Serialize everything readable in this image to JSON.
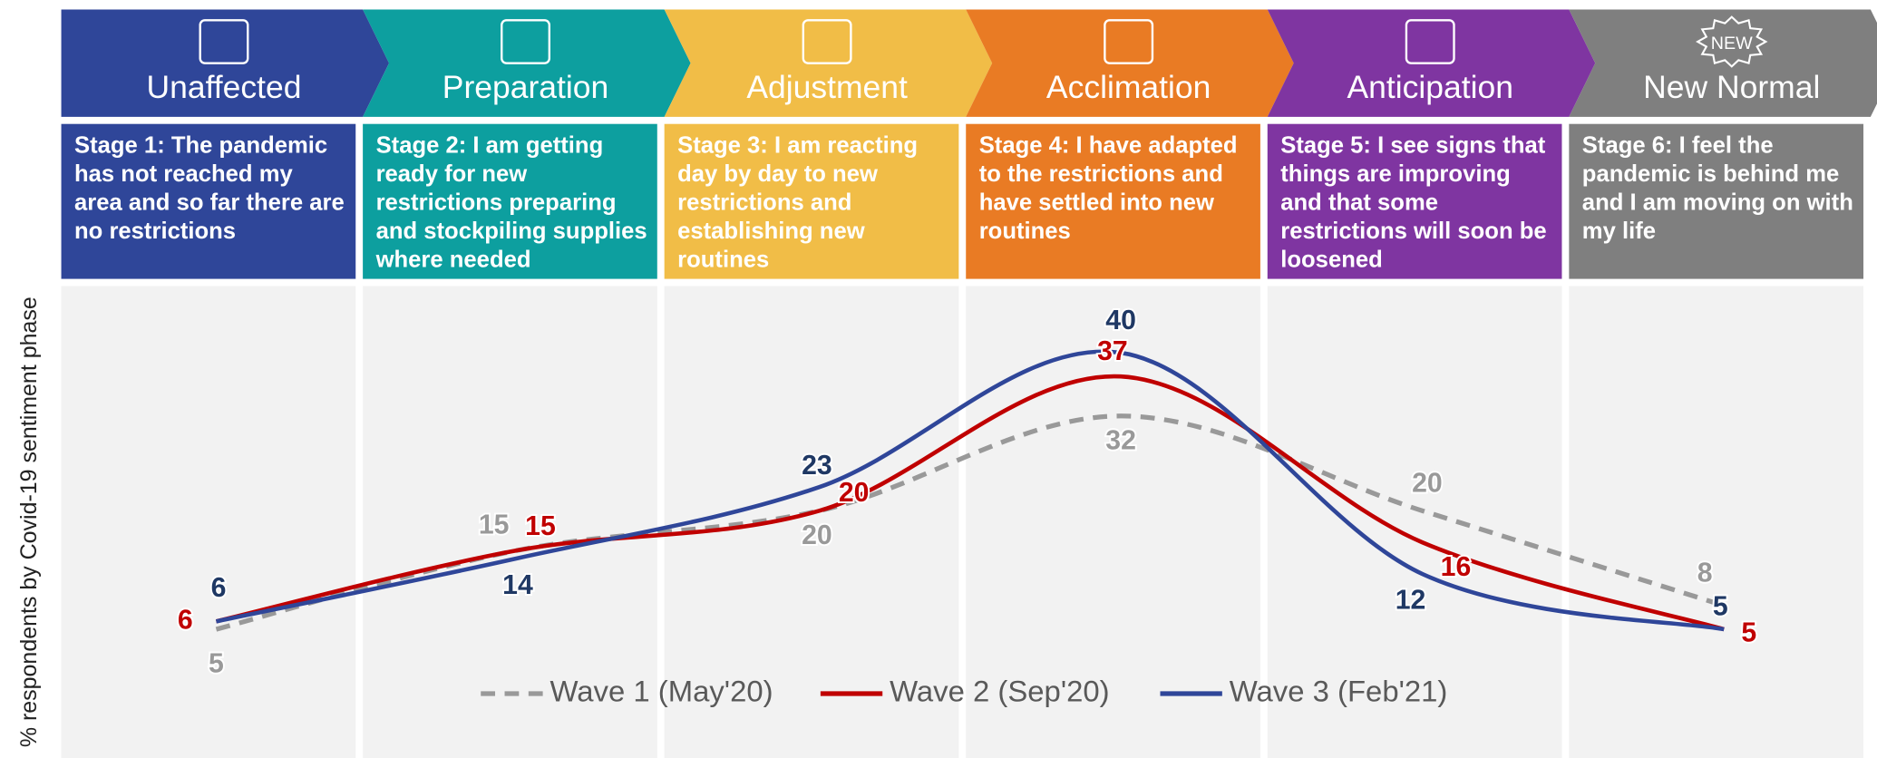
{
  "chart_data": {
    "type": "line",
    "y_label": "% respondents by Covid-19 sentiment phase",
    "categories": [
      "Unaffected",
      "Preparation",
      "Adjustment",
      "Acclimation",
      "Anticipation",
      "New Normal"
    ],
    "descriptions": [
      "Stage 1: The pandemic has not reached my area and so far there are no restrictions",
      "Stage 2: I am getting ready for new restrictions preparing and stockpiling supplies where needed",
      "Stage 3: I am reacting day by day to new restrictions and establishing new routines",
      "Stage 4: I have adapted to the restrictions and have settled into new routines",
      "Stage 5: I see signs that things are improving and that some restrictions will soon be loosened",
      "Stage 6: I feel the pandemic is behind me and I am moving on with my life"
    ],
    "stage_colors": [
      "#2f4699",
      "#0d9f9f",
      "#f1bd47",
      "#e97b24",
      "#7f35a1",
      "#7f7f7f"
    ],
    "icon_label": "NEW",
    "series": [
      {
        "name": "Wave 1 (May'20)",
        "color": "#999999",
        "dashed": true,
        "label_color": "#999999",
        "values": [
          5,
          15,
          20,
          32,
          20,
          8
        ]
      },
      {
        "name": "Wave 2 (Sep'20)",
        "color": "#c00000",
        "dashed": false,
        "label_color": "#c00000",
        "values": [
          6,
          15,
          20,
          37,
          16,
          5
        ]
      },
      {
        "name": "Wave 3 (Feb'21)",
        "color": "#2f4699",
        "dashed": false,
        "label_color": "#1f3864",
        "values": [
          6,
          14,
          23,
          40,
          12,
          5
        ]
      }
    ]
  }
}
